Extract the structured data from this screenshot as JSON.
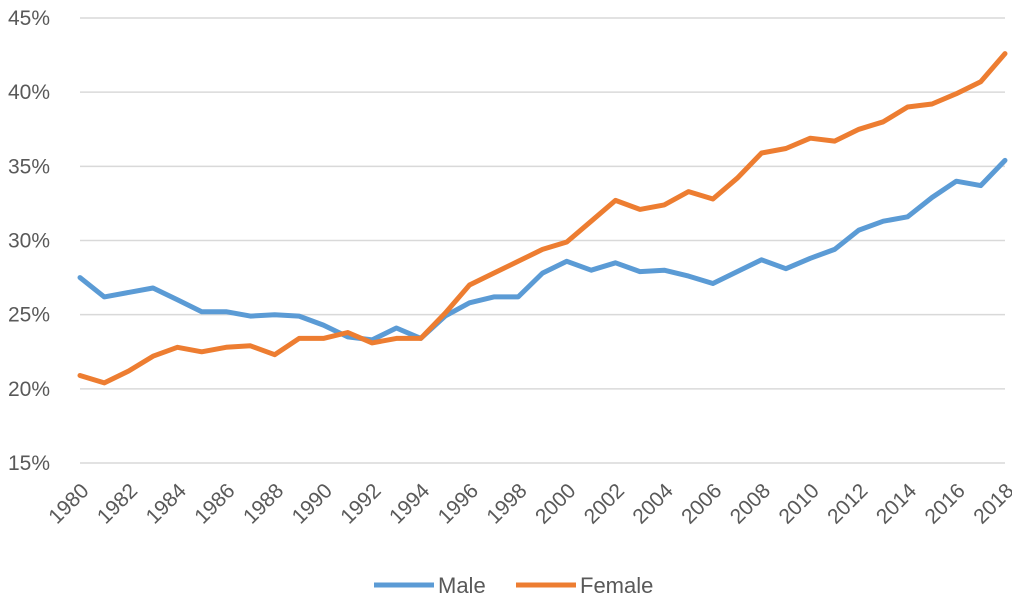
{
  "chart_data": {
    "type": "line",
    "title": "",
    "xlabel": "",
    "ylabel": "",
    "ylim": [
      0.15,
      0.45
    ],
    "yticks": [
      0.15,
      0.2,
      0.25,
      0.3,
      0.35,
      0.4,
      0.45
    ],
    "ytick_labels": [
      "15%",
      "20%",
      "25%",
      "30%",
      "35%",
      "40%",
      "45%"
    ],
    "x": [
      1980,
      1981,
      1982,
      1983,
      1984,
      1985,
      1986,
      1987,
      1988,
      1989,
      1990,
      1991,
      1992,
      1993,
      1994,
      1995,
      1996,
      1997,
      1998,
      1999,
      2000,
      2001,
      2002,
      2003,
      2004,
      2005,
      2006,
      2007,
      2008,
      2009,
      2010,
      2011,
      2012,
      2013,
      2014,
      2015,
      2016,
      2017,
      2018
    ],
    "xtick_labels": [
      "1980",
      "1982",
      "1984",
      "1986",
      "1988",
      "1990",
      "1992",
      "1994",
      "1996",
      "1998",
      "2000",
      "2002",
      "2004",
      "2006",
      "2008",
      "2010",
      "2012",
      "2014",
      "2016",
      "2018"
    ],
    "grid": true,
    "legend_position": "bottom",
    "series": [
      {
        "name": "Male",
        "color": "#5b9bd5",
        "values": [
          0.275,
          0.262,
          0.265,
          0.268,
          0.26,
          0.252,
          0.252,
          0.249,
          0.25,
          0.249,
          0.243,
          0.235,
          0.233,
          0.241,
          0.234,
          0.249,
          0.258,
          0.262,
          0.262,
          0.278,
          0.286,
          0.28,
          0.285,
          0.279,
          0.28,
          0.276,
          0.271,
          0.279,
          0.287,
          0.281,
          0.288,
          0.294,
          0.307,
          0.313,
          0.316,
          0.329,
          0.34,
          0.337,
          0.354
        ]
      },
      {
        "name": "Female",
        "color": "#ed7d31",
        "values": [
          0.209,
          0.204,
          0.212,
          0.222,
          0.228,
          0.225,
          0.228,
          0.229,
          0.223,
          0.234,
          0.234,
          0.238,
          0.231,
          0.234,
          0.234,
          0.251,
          0.27,
          0.278,
          0.286,
          0.294,
          0.299,
          0.313,
          0.327,
          0.321,
          0.324,
          0.333,
          0.328,
          0.342,
          0.359,
          0.362,
          0.369,
          0.367,
          0.375,
          0.38,
          0.39,
          0.392,
          0.399,
          0.407,
          0.426
        ]
      }
    ]
  }
}
